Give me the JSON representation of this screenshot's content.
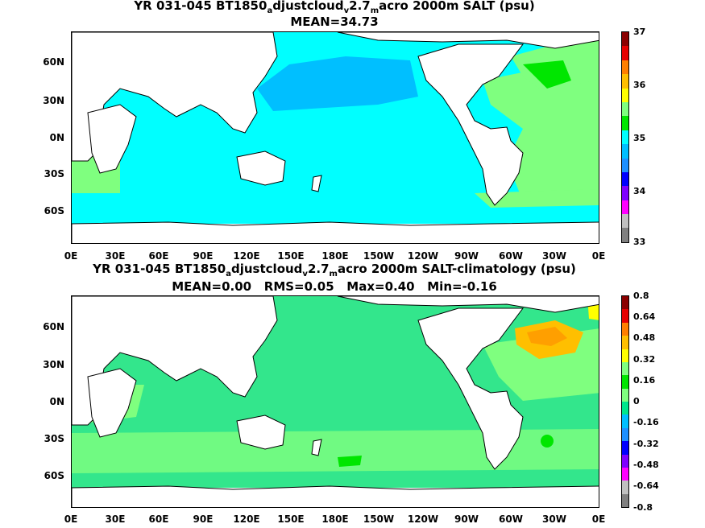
{
  "top": {
    "title_pre": "YR 031-045 BT1850",
    "sub_a": "a",
    "mid1": "djustcloud",
    "sub_v": "v",
    "mid2": "2.7",
    "sub_m": "m",
    "title_post": "acro 2000m SALT (psu)",
    "stats": "MEAN=34.73",
    "colorbar_labels": [
      "37",
      "36",
      "35",
      "34",
      "33"
    ],
    "colorbar_colors": [
      "#8b0000",
      "#e60000",
      "#ff7f00",
      "#ffbf00",
      "#ffff00",
      "#7fff7f",
      "#00e600",
      "#00ffff",
      "#00bfff",
      "#1e90ff",
      "#0000ff",
      "#7f00ff",
      "#ff00ff",
      "#c0c0c0",
      "#808080"
    ],
    "legend_highlight_colors": {
      "pacific": "#00bfff",
      "ocean": "#00ffff",
      "atlantic": "#7fff7f",
      "north_atlantic": "#00e600"
    }
  },
  "bottom": {
    "title_pre": "YR 031-045 BT1850",
    "sub_a": "a",
    "mid1": "djustcloud",
    "sub_v": "v",
    "mid2": "2.7",
    "sub_m": "m",
    "title_post": "acro 2000m SALT-climatology (psu)",
    "stats": "MEAN=0.00   RMS=0.05   Max=0.40   Min=-0.16",
    "colorbar_labels": [
      "0.8",
      "0.64",
      "0.48",
      "0.32",
      "0.16",
      "0",
      "-0.16",
      "-0.32",
      "-0.48",
      "-0.64",
      "-0.8"
    ],
    "colorbar_colors": [
      "#8b0000",
      "#e60000",
      "#ff7f00",
      "#ffbf00",
      "#ffff00",
      "#7fff7f",
      "#00e600",
      "#7fff7f",
      "#00e68c",
      "#00bfff",
      "#1e90ff",
      "#0000ff",
      "#7f00ff",
      "#ff00ff",
      "#c0c0c0",
      "#808080"
    ],
    "legend_highlight_colors": {
      "ocean": "#33e68c",
      "light": "#7fff7f",
      "warm": "#ffbf00",
      "green": "#00e600"
    }
  },
  "axes": {
    "lat_labels": [
      "60N",
      "30N",
      "0N",
      "30S",
      "60S"
    ],
    "lon_labels": [
      "0E",
      "30E",
      "60E",
      "90E",
      "120E",
      "150E",
      "180E",
      "150W",
      "120W",
      "90W",
      "60W",
      "30W",
      "0E"
    ]
  }
}
